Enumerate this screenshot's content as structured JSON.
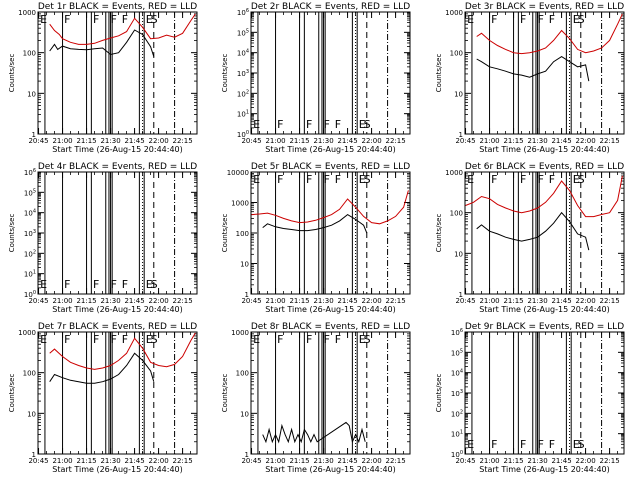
{
  "figure": {
    "background": "#ffffff",
    "foreground": "#000000",
    "events_color": "#000000",
    "lld_color": "#cc0000",
    "x_tick_labels": [
      "20:45",
      "21:00",
      "21:15",
      "21:30",
      "21:45",
      "22:00",
      "22:15"
    ],
    "xlabel": "Start Time (26-Aug-15 20:44:40)",
    "ylabel": "Counts/sec",
    "marker_letters": [
      "E",
      "F",
      "F",
      "F",
      "F",
      "E",
      "S"
    ]
  },
  "chart_data": [
    {
      "type": "line",
      "title": "Det 1r BLACK = Events, RED = LLD",
      "x_range": [
        "20:44:40",
        "22:24"
      ],
      "y_scale": "log",
      "y_range": [
        1,
        1000
      ],
      "y_tick_labels": [
        "1",
        "10",
        "100",
        "1000"
      ],
      "has_data": true,
      "series": [
        {
          "name": "Events",
          "color": "#000000",
          "x": [
            "20:52",
            "20:55",
            "20:57",
            "21:00",
            "21:05",
            "21:10",
            "21:15",
            "21:20",
            "21:25",
            "21:30",
            "21:35",
            "21:40",
            "21:45",
            "21:50",
            "21:55",
            "21:57"
          ],
          "values": [
            110,
            160,
            120,
            145,
            125,
            120,
            118,
            125,
            130,
            90,
            100,
            180,
            360,
            280,
            140,
            80
          ]
        },
        {
          "name": "LLD",
          "color": "#cc0000",
          "x": [
            "20:52",
            "20:55",
            "20:58",
            "21:00",
            "21:05",
            "21:10",
            "21:15",
            "21:20",
            "21:25",
            "21:30",
            "21:35",
            "21:40",
            "21:45",
            "21:50",
            "21:55",
            "22:00",
            "22:05",
            "22:10",
            "22:15",
            "22:20",
            "22:23"
          ],
          "values": [
            500,
            350,
            280,
            220,
            180,
            160,
            160,
            170,
            200,
            230,
            260,
            330,
            700,
            420,
            220,
            230,
            270,
            240,
            300,
            600,
            900
          ]
        }
      ]
    },
    {
      "type": "line",
      "title": "Det 2r BLACK = Events, RED = LLD",
      "x_range": [
        "20:44:40",
        "22:24"
      ],
      "y_scale": "log",
      "y_range": [
        1,
        1000000
      ],
      "y_tick_labels": [
        "10^0",
        "10^1",
        "10^2",
        "10^3",
        "10^4",
        "10^5",
        "10^6"
      ],
      "has_data": false,
      "series": []
    },
    {
      "type": "line",
      "title": "Det 3r BLACK = Events, RED = LLD",
      "x_range": [
        "20:44:40",
        "22:24"
      ],
      "y_scale": "log",
      "y_range": [
        1,
        1000
      ],
      "y_tick_labels": [
        "1",
        "10",
        "100",
        "1000"
      ],
      "has_data": true,
      "series": [
        {
          "name": "Events",
          "color": "#000000",
          "x": [
            "20:52",
            "20:55",
            "21:00",
            "21:05",
            "21:10",
            "21:15",
            "21:20",
            "21:25",
            "21:30",
            "21:35",
            "21:40",
            "21:45",
            "21:50",
            "21:55",
            "22:00",
            "22:02"
          ],
          "values": [
            70,
            60,
            45,
            40,
            35,
            30,
            28,
            25,
            30,
            35,
            60,
            80,
            60,
            45,
            50,
            20
          ]
        },
        {
          "name": "LLD",
          "color": "#cc0000",
          "x": [
            "20:52",
            "20:55",
            "21:00",
            "21:05",
            "21:10",
            "21:15",
            "21:20",
            "21:25",
            "21:30",
            "21:35",
            "21:40",
            "21:45",
            "21:50",
            "21:55",
            "22:00",
            "22:05",
            "22:10",
            "22:15",
            "22:20",
            "22:23"
          ],
          "values": [
            250,
            300,
            200,
            150,
            120,
            100,
            95,
            100,
            110,
            130,
            200,
            350,
            220,
            120,
            100,
            110,
            130,
            200,
            500,
            900
          ]
        }
      ]
    },
    {
      "type": "line",
      "title": "Det 4r BLACK = Events, RED = LLD",
      "x_range": [
        "20:44:40",
        "22:24"
      ],
      "y_scale": "log",
      "y_range": [
        1,
        1000000
      ],
      "y_tick_labels": [
        "10^0",
        "10^1",
        "10^2",
        "10^3",
        "10^4",
        "10^5",
        "10^6"
      ],
      "has_data": false,
      "series": []
    },
    {
      "type": "line",
      "title": "Det 5r BLACK = Events, RED = LLD",
      "x_range": [
        "20:44:40",
        "22:24"
      ],
      "y_scale": "log",
      "y_range": [
        1,
        10000
      ],
      "y_tick_labels": [
        "1",
        "10",
        "100",
        "1000",
        "10000"
      ],
      "has_data": true,
      "series": [
        {
          "name": "Events",
          "color": "#000000",
          "x": [
            "20:52",
            "20:55",
            "21:00",
            "21:05",
            "21:10",
            "21:15",
            "21:20",
            "21:25",
            "21:30",
            "21:35",
            "21:40",
            "21:45",
            "21:50",
            "21:55",
            "21:57"
          ],
          "values": [
            150,
            200,
            160,
            140,
            130,
            120,
            120,
            130,
            150,
            180,
            250,
            400,
            280,
            180,
            100
          ]
        },
        {
          "name": "LLD",
          "color": "#cc0000",
          "x": [
            "20:45",
            "20:50",
            "20:55",
            "21:00",
            "21:05",
            "21:10",
            "21:15",
            "21:20",
            "21:25",
            "21:30",
            "21:35",
            "21:40",
            "21:45",
            "21:50",
            "21:55",
            "22:00",
            "22:05",
            "22:10",
            "22:15",
            "22:20",
            "22:23"
          ],
          "values": [
            400,
            420,
            450,
            380,
            300,
            250,
            220,
            230,
            260,
            320,
            400,
            600,
            1300,
            700,
            350,
            220,
            200,
            250,
            350,
            700,
            2500
          ]
        }
      ]
    },
    {
      "type": "line",
      "title": "Det 6r BLACK = Events, RED = LLD",
      "x_range": [
        "20:44:40",
        "22:24"
      ],
      "y_scale": "log",
      "y_range": [
        1,
        1000
      ],
      "y_tick_labels": [
        "1",
        "10",
        "100",
        "1000"
      ],
      "has_data": true,
      "series": [
        {
          "name": "Events",
          "color": "#000000",
          "x": [
            "20:52",
            "20:55",
            "21:00",
            "21:05",
            "21:10",
            "21:15",
            "21:20",
            "21:25",
            "21:30",
            "21:35",
            "21:40",
            "21:45",
            "21:50",
            "21:55",
            "22:00",
            "22:02"
          ],
          "values": [
            40,
            50,
            35,
            30,
            25,
            22,
            20,
            22,
            25,
            35,
            55,
            100,
            60,
            30,
            25,
            12
          ]
        },
        {
          "name": "LLD",
          "color": "#cc0000",
          "x": [
            "20:45",
            "20:50",
            "20:55",
            "21:00",
            "21:05",
            "21:10",
            "21:15",
            "21:20",
            "21:25",
            "21:30",
            "21:35",
            "21:40",
            "21:45",
            "21:50",
            "21:55",
            "22:00",
            "22:05",
            "22:10",
            "22:15",
            "22:20",
            "22:23"
          ],
          "values": [
            150,
            180,
            250,
            220,
            160,
            130,
            110,
            100,
            110,
            130,
            180,
            300,
            600,
            350,
            150,
            80,
            80,
            90,
            100,
            200,
            800
          ]
        }
      ]
    },
    {
      "type": "line",
      "title": "Det 7r BLACK = Events, RED = LLD",
      "x_range": [
        "20:44:40",
        "22:24"
      ],
      "y_scale": "log",
      "y_range": [
        1,
        1000
      ],
      "y_tick_labels": [
        "1",
        "10",
        "100",
        "1000"
      ],
      "has_data": true,
      "series": [
        {
          "name": "Events",
          "color": "#000000",
          "x": [
            "20:52",
            "20:55",
            "21:00",
            "21:05",
            "21:10",
            "21:15",
            "21:20",
            "21:25",
            "21:30",
            "21:35",
            "21:40",
            "21:45",
            "21:50",
            "21:55",
            "21:57"
          ],
          "values": [
            60,
            90,
            75,
            65,
            60,
            55,
            55,
            60,
            70,
            90,
            150,
            300,
            200,
            110,
            60
          ]
        },
        {
          "name": "LLD",
          "color": "#cc0000",
          "x": [
            "20:52",
            "20:55",
            "21:00",
            "21:05",
            "21:10",
            "21:15",
            "21:20",
            "21:25",
            "21:30",
            "21:35",
            "21:40",
            "21:45",
            "21:50",
            "21:55",
            "22:00",
            "22:05",
            "22:10",
            "22:15",
            "22:20",
            "22:23"
          ],
          "values": [
            300,
            380,
            250,
            180,
            150,
            130,
            120,
            130,
            150,
            200,
            300,
            700,
            400,
            180,
            150,
            140,
            160,
            250,
            600,
            950
          ]
        }
      ]
    },
    {
      "type": "line",
      "title": "Det 8r BLACK = Events, RED = LLD",
      "x_range": [
        "20:44:40",
        "22:24"
      ],
      "y_scale": "log",
      "y_range": [
        1,
        1000
      ],
      "y_tick_labels": [
        "1",
        "10",
        "100",
        "1000"
      ],
      "has_data": true,
      "series": [
        {
          "name": "Events",
          "color": "#000000",
          "x": [
            "20:52",
            "20:54",
            "20:56",
            "20:58",
            "21:00",
            "21:02",
            "21:04",
            "21:06",
            "21:08",
            "21:10",
            "21:12",
            "21:14",
            "21:16",
            "21:18",
            "21:20",
            "21:22",
            "21:24",
            "21:26",
            "21:44",
            "21:46",
            "21:48",
            "21:50",
            "21:52",
            "21:54",
            "21:56"
          ],
          "values": [
            3,
            2,
            4,
            2,
            3,
            2,
            5,
            3,
            2,
            4,
            2,
            3,
            2,
            4,
            3,
            2,
            3,
            2,
            6,
            5,
            2,
            3,
            2,
            4,
            2
          ]
        }
      ]
    },
    {
      "type": "line",
      "title": "Det 9r BLACK = Events, RED = LLD",
      "x_range": [
        "20:44:40",
        "22:24"
      ],
      "y_scale": "log",
      "y_range": [
        1,
        1000000
      ],
      "y_tick_labels": [
        "10^0",
        "10^1",
        "10^2",
        "10^3",
        "10^4",
        "10^5",
        "10^6"
      ],
      "has_data": false,
      "series": []
    }
  ]
}
